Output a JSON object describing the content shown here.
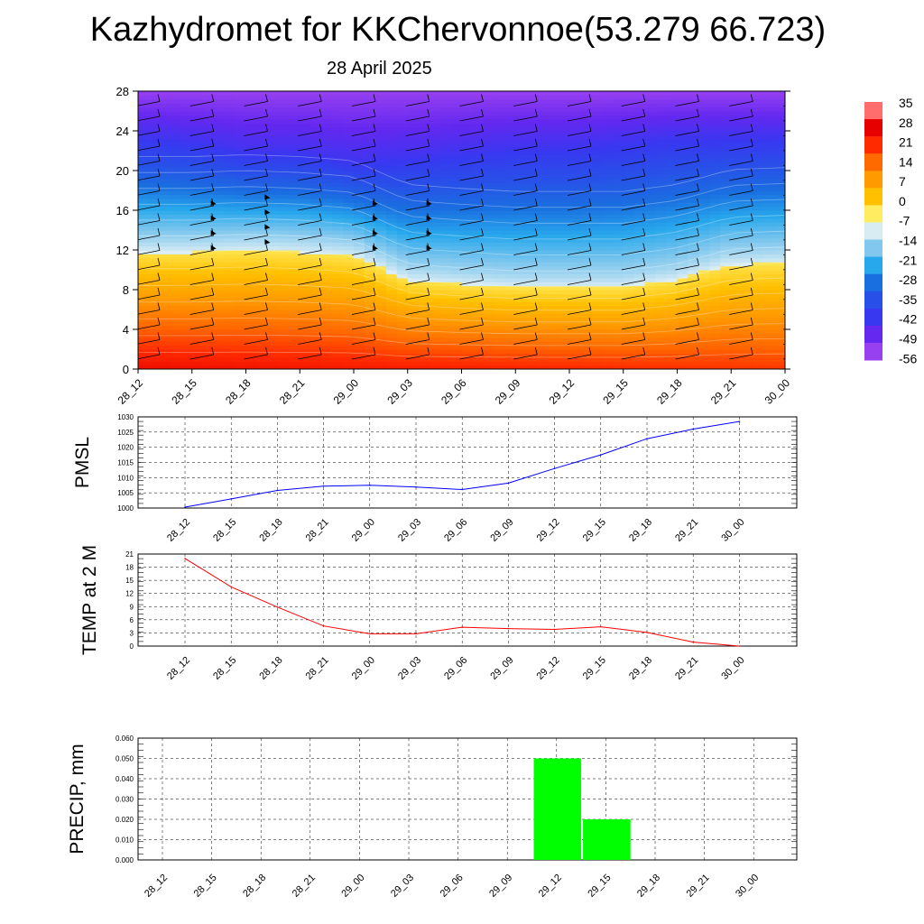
{
  "header": {
    "title": "Kazhydromet for KKChervonnoe(53.279 66.723)",
    "subtitle": "28 April 2025"
  },
  "chart_data": [
    {
      "type": "heatmap",
      "name": "cross-section",
      "x_ticks": [
        "28_12",
        "28_15",
        "28_18",
        "28_21",
        "29_00",
        "29_03",
        "29_06",
        "29_09",
        "29_12",
        "29_15",
        "29_18",
        "29_21",
        "30_00"
      ],
      "y_ticks": [
        0,
        4,
        8,
        12,
        16,
        20,
        24,
        28
      ],
      "ylim": [
        0,
        28
      ],
      "colorbar": {
        "labels": [
          "35",
          "28",
          "21",
          "14",
          "7",
          "0",
          "-7",
          "-14",
          "-21",
          "-28",
          "-35",
          "-42",
          "-49",
          "-56"
        ],
        "colors": [
          "#ff6d6d",
          "#e60000",
          "#ff2a00",
          "#ff6a00",
          "#ff9a00",
          "#ffc000",
          "#ffec60",
          "#d8ecf4",
          "#82c8ee",
          "#28a8ec",
          "#1a6fe0",
          "#2850e8",
          "#3838f0",
          "#6428f0",
          "#9640f0"
        ]
      },
      "freezing_level_km": [
        11.8,
        11.8,
        12.0,
        11.8,
        11.4,
        9.0,
        8.6,
        8.3,
        8.3,
        8.3,
        9.0,
        10.5,
        10.7
      ],
      "tropopause_km": [
        23.5,
        23.0,
        22.0,
        22.0,
        21.0,
        21.5,
        22.0,
        22.5,
        22.5,
        23.0,
        23.5,
        23.5,
        23.5
      ]
    },
    {
      "type": "line",
      "ylabel": "PMSL",
      "categories": [
        "28_12",
        "28_15",
        "28_18",
        "28_21",
        "29_00",
        "29_03",
        "29_06",
        "29_09",
        "29_12",
        "29_15",
        "29_18",
        "29_21",
        "30_00"
      ],
      "values": [
        1000.3,
        1003.0,
        1005.8,
        1007.2,
        1007.5,
        1006.9,
        1006.1,
        1008.2,
        1013.0,
        1017.5,
        1022.8,
        1026.0,
        1028.5
      ],
      "ylim": [
        1000,
        1030
      ],
      "y_ticks": [
        "1000",
        "1005",
        "1010",
        "1015",
        "1020",
        "1025",
        "1030"
      ],
      "color": "#0000ff"
    },
    {
      "type": "line",
      "ylabel": "TEMP at 2 M",
      "categories": [
        "28_12",
        "28_15",
        "28_18",
        "28_21",
        "29_00",
        "29_03",
        "29_06",
        "29_09",
        "29_12",
        "29_15",
        "29_18",
        "29_21",
        "30_00"
      ],
      "values": [
        20.0,
        13.5,
        8.9,
        4.6,
        2.8,
        2.8,
        4.3,
        4.0,
        3.8,
        4.4,
        3.1,
        0.9,
        0.0
      ],
      "ylim": [
        0,
        21
      ],
      "y_ticks": [
        "0",
        "3",
        "6",
        "9",
        "12",
        "15",
        "18",
        "21"
      ],
      "color": "#ff0000"
    },
    {
      "type": "bar",
      "ylabel": "PRECIP, mm",
      "categories": [
        "28_12",
        "28_15",
        "28_18",
        "28_21",
        "29_00",
        "29_03",
        "29_06",
        "29_09",
        "29_12",
        "29_15",
        "29_18",
        "29_21",
        "30_00"
      ],
      "values": [
        0,
        0,
        0,
        0,
        0,
        0,
        0,
        0,
        0.05,
        0.02,
        0,
        0,
        0
      ],
      "ylim": [
        0,
        0.06
      ],
      "y_ticks": [
        "0.000",
        "0.010",
        "0.020",
        "0.030",
        "0.040",
        "0.050",
        "0.060"
      ],
      "color": "#00ff00"
    }
  ]
}
